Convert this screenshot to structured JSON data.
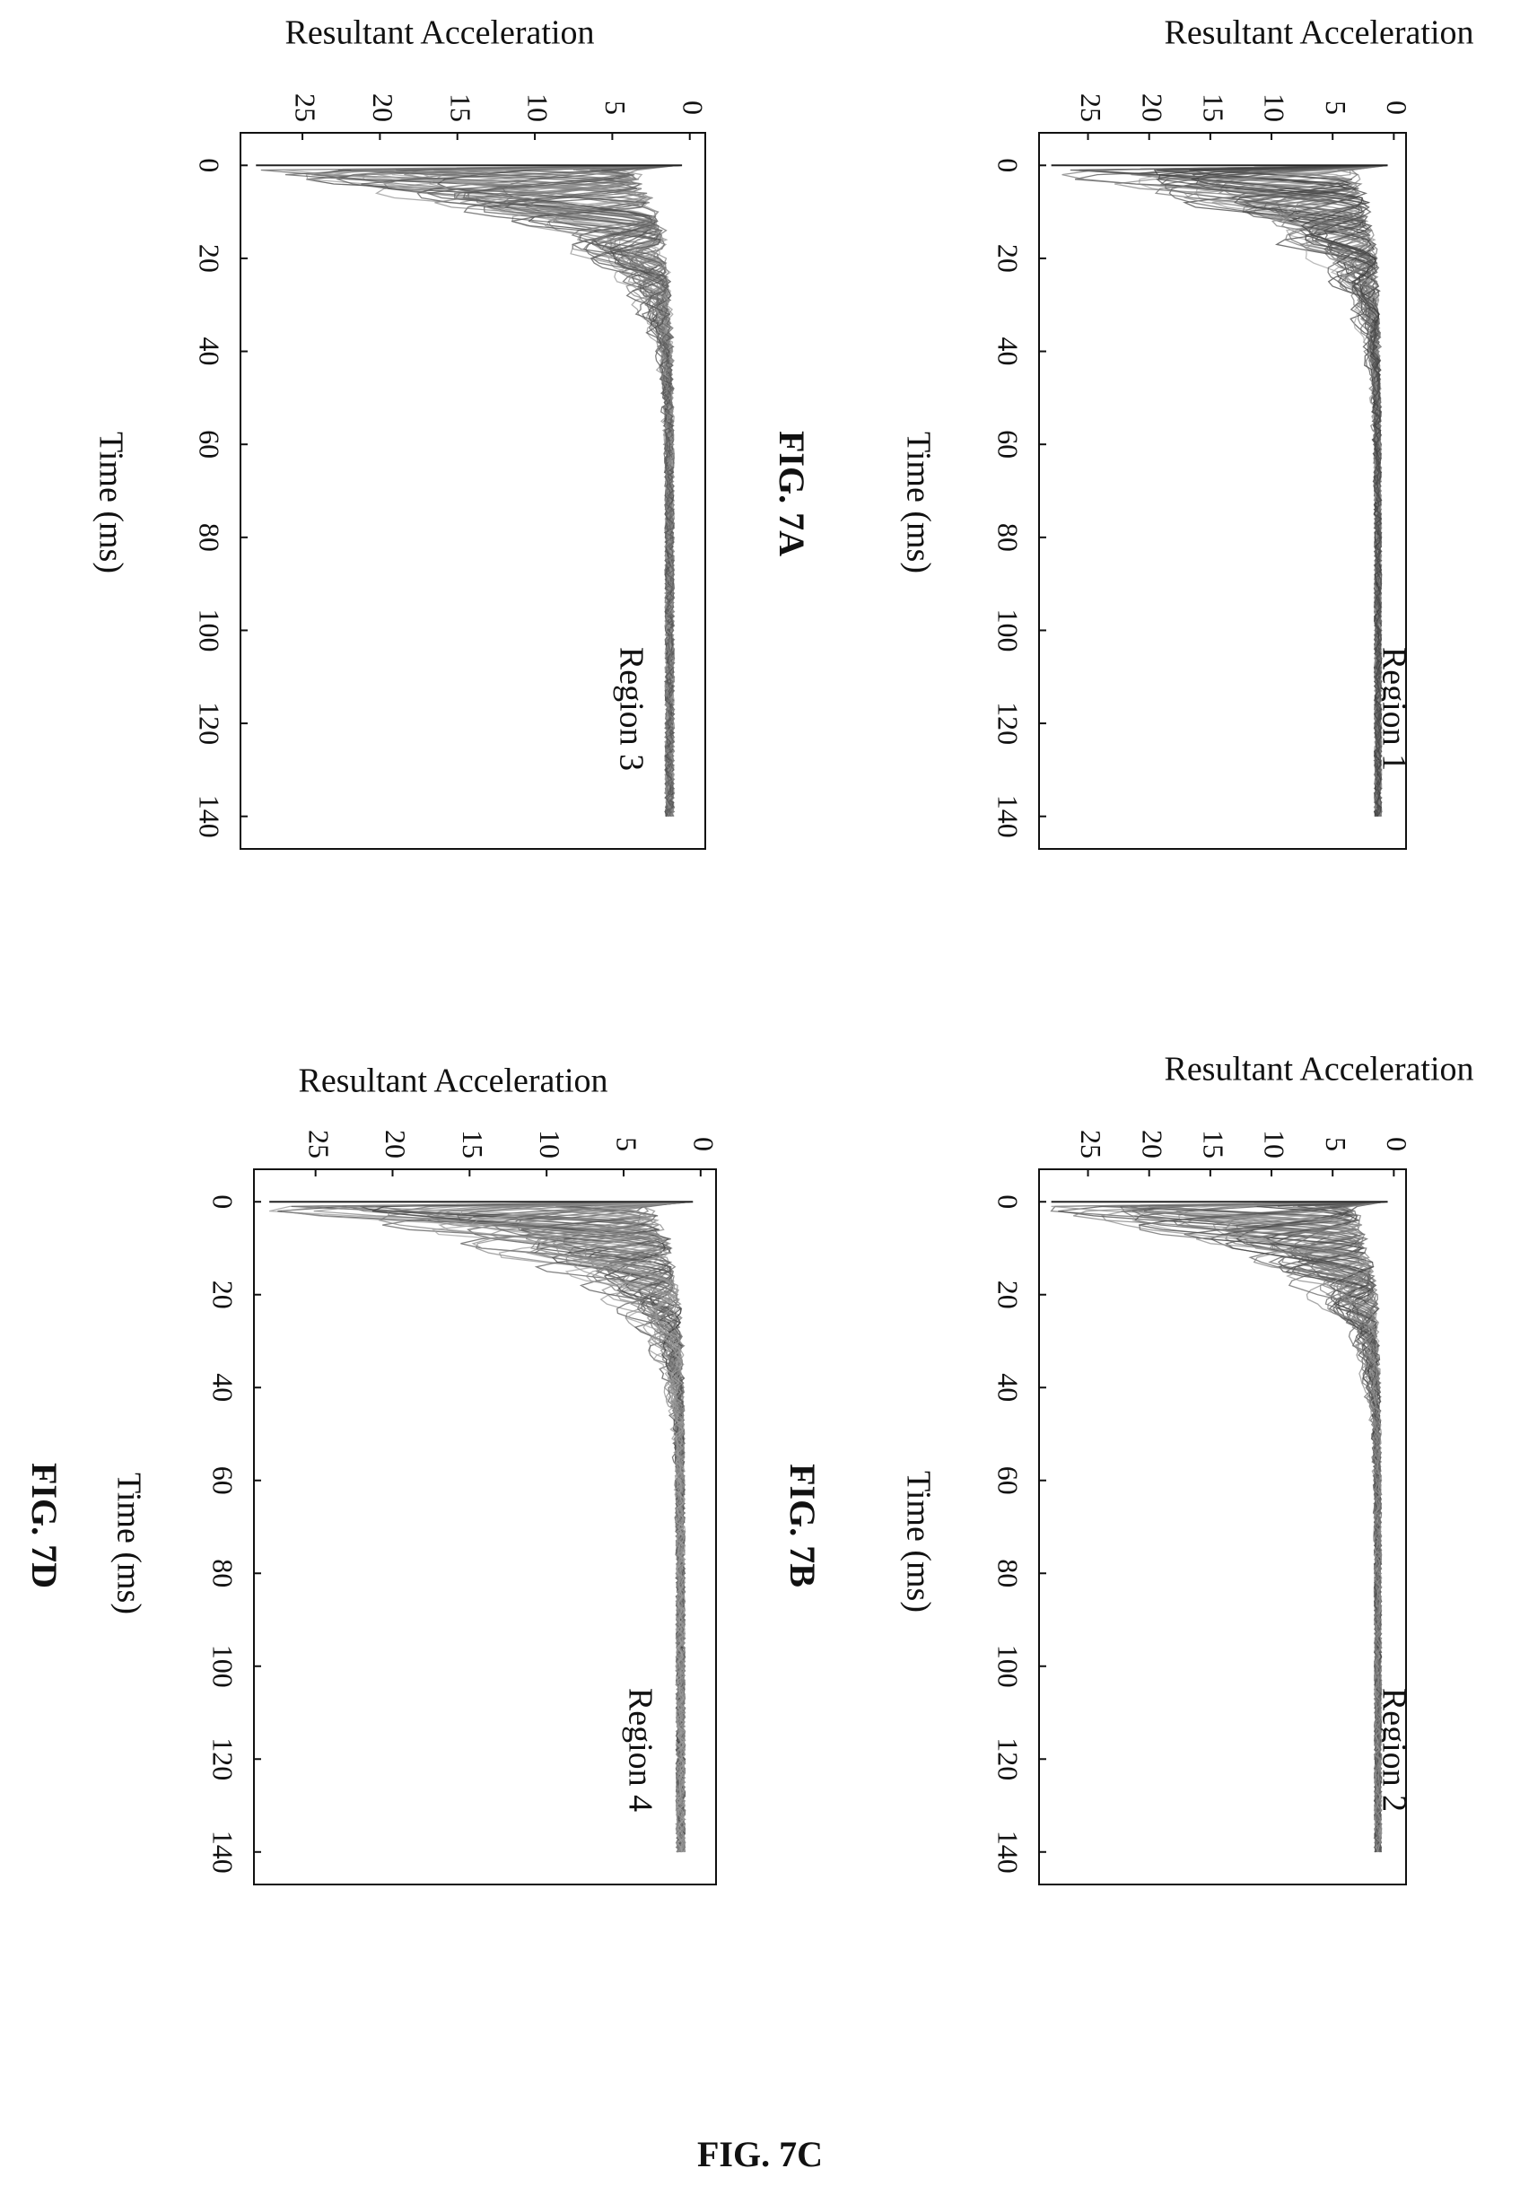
{
  "page": {
    "fig_7c_label": "FIG. 7C"
  },
  "chart_data": [
    {
      "type": "line",
      "panel": "region-1",
      "figure_label": "",
      "region_label": "Region 1",
      "ylabel": "Resultant Acceleration",
      "xlabel": "Time (ms)",
      "x_ticks": [
        "0",
        "20",
        "40",
        "60",
        "80",
        "100",
        "120",
        "140"
      ],
      "y_ticks": [
        "0",
        "5",
        "10",
        "15",
        "20",
        "25"
      ],
      "xlim": [
        -7,
        147
      ],
      "ylim": [
        -1,
        29
      ],
      "orientation": "rotated-90-clockwise",
      "peak": 28,
      "spread": 0.65,
      "series_count": 40
    },
    {
      "type": "line",
      "panel": "region-2",
      "figure_label": "FIG. 7B",
      "region_label": "Region 2",
      "ylabel": "Resultant Acceleration",
      "xlabel": "Time (ms)",
      "x_ticks": [
        "0",
        "20",
        "40",
        "60",
        "80",
        "100",
        "120",
        "140"
      ],
      "y_ticks": [
        "0",
        "5",
        "10",
        "15",
        "20",
        "25"
      ],
      "xlim": [
        -7,
        147
      ],
      "ylim": [
        -1,
        29
      ],
      "orientation": "rotated-90-clockwise",
      "peak": 28,
      "spread": 0.5,
      "series_count": 40
    },
    {
      "type": "line",
      "panel": "region-3",
      "figure_label": "FIG. 7A",
      "region_label": "Region 3",
      "ylabel": "Resultant Acceleration",
      "xlabel": "Time (ms)",
      "x_ticks": [
        "0",
        "20",
        "40",
        "60",
        "80",
        "100",
        "120",
        "140"
      ],
      "y_ticks": [
        "0",
        "5",
        "10",
        "15",
        "20",
        "25"
      ],
      "xlim": [
        -7,
        147
      ],
      "ylim": [
        -1,
        29
      ],
      "orientation": "rotated-90-clockwise",
      "peak": 28,
      "spread": 0.3,
      "series_count": 40
    },
    {
      "type": "line",
      "panel": "region-4",
      "figure_label": "FIG. 7D",
      "region_label": "Region 4",
      "ylabel": "Resultant Acceleration",
      "xlabel": "Time (ms)",
      "x_ticks": [
        "0",
        "20",
        "40",
        "60",
        "80",
        "100",
        "120",
        "140"
      ],
      "y_ticks": [
        "0",
        "5",
        "10",
        "15",
        "20",
        "25"
      ],
      "xlim": [
        -7,
        147
      ],
      "ylim": [
        -1,
        29
      ],
      "orientation": "rotated-90-clockwise",
      "peak": 28,
      "spread": 0.45,
      "series_count": 40
    }
  ]
}
